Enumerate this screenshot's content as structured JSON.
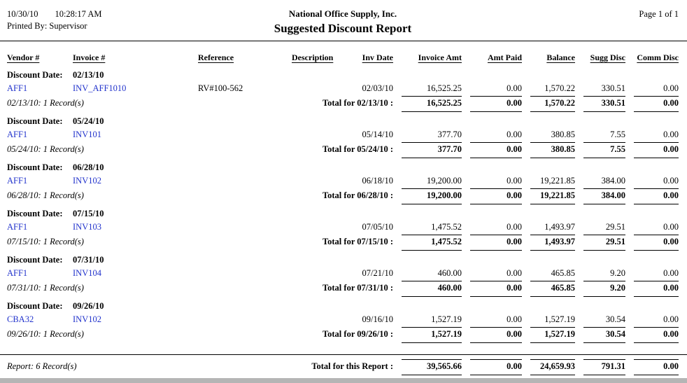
{
  "header": {
    "date": "10/30/10",
    "time": "10:28:17 AM",
    "printed_by": "Printed By: Supervisor",
    "company": "National Office Supply, Inc.",
    "title": "Suggested Discount Report",
    "page": "Page 1 of 1"
  },
  "labels": {
    "discount_date": "Discount Date:"
  },
  "colors": {
    "link_blue": "#2233cc",
    "text": "#000000",
    "rule": "#000000"
  },
  "columns": [
    "Vendor #",
    "Invoice #",
    "Reference",
    "Description",
    "Inv Date",
    "Invoice Amt",
    "Amt Paid",
    "Balance",
    "Sugg Disc",
    "Comm Disc"
  ],
  "groups": [
    {
      "discount_date": "02/13/10",
      "rows": [
        {
          "vendor": "AFF1",
          "invoice": "INV_AFF1010",
          "reference": "RV#100-562",
          "description": "",
          "inv_date": "02/03/10",
          "invoice_amt": "16,525.25",
          "amt_paid": "0.00",
          "balance": "1,570.22",
          "sugg_disc": "330.51",
          "comm_disc": "0.00"
        }
      ],
      "record_note": "02/13/10: 1 Record(s)",
      "total_label": "Total for 02/13/10 :",
      "totals": {
        "invoice_amt": "16,525.25",
        "amt_paid": "0.00",
        "balance": "1,570.22",
        "sugg_disc": "330.51",
        "comm_disc": "0.00"
      }
    },
    {
      "discount_date": "05/24/10",
      "rows": [
        {
          "vendor": "AFF1",
          "invoice": "INV101",
          "reference": "",
          "description": "",
          "inv_date": "05/14/10",
          "invoice_amt": "377.70",
          "amt_paid": "0.00",
          "balance": "380.85",
          "sugg_disc": "7.55",
          "comm_disc": "0.00"
        }
      ],
      "record_note": "05/24/10: 1 Record(s)",
      "total_label": "Total for 05/24/10 :",
      "totals": {
        "invoice_amt": "377.70",
        "amt_paid": "0.00",
        "balance": "380.85",
        "sugg_disc": "7.55",
        "comm_disc": "0.00"
      }
    },
    {
      "discount_date": "06/28/10",
      "rows": [
        {
          "vendor": "AFF1",
          "invoice": "INV102",
          "reference": "",
          "description": "",
          "inv_date": "06/18/10",
          "invoice_amt": "19,200.00",
          "amt_paid": "0.00",
          "balance": "19,221.85",
          "sugg_disc": "384.00",
          "comm_disc": "0.00"
        }
      ],
      "record_note": "06/28/10: 1 Record(s)",
      "total_label": "Total for 06/28/10 :",
      "totals": {
        "invoice_amt": "19,200.00",
        "amt_paid": "0.00",
        "balance": "19,221.85",
        "sugg_disc": "384.00",
        "comm_disc": "0.00"
      }
    },
    {
      "discount_date": "07/15/10",
      "rows": [
        {
          "vendor": "AFF1",
          "invoice": "INV103",
          "reference": "",
          "description": "",
          "inv_date": "07/05/10",
          "invoice_amt": "1,475.52",
          "amt_paid": "0.00",
          "balance": "1,493.97",
          "sugg_disc": "29.51",
          "comm_disc": "0.00"
        }
      ],
      "record_note": "07/15/10: 1 Record(s)",
      "total_label": "Total for 07/15/10 :",
      "totals": {
        "invoice_amt": "1,475.52",
        "amt_paid": "0.00",
        "balance": "1,493.97",
        "sugg_disc": "29.51",
        "comm_disc": "0.00"
      }
    },
    {
      "discount_date": "07/31/10",
      "rows": [
        {
          "vendor": "AFF1",
          "invoice": "INV104",
          "reference": "",
          "description": "",
          "inv_date": "07/21/10",
          "invoice_amt": "460.00",
          "amt_paid": "0.00",
          "balance": "465.85",
          "sugg_disc": "9.20",
          "comm_disc": "0.00"
        }
      ],
      "record_note": "07/31/10: 1 Record(s)",
      "total_label": "Total for 07/31/10 :",
      "totals": {
        "invoice_amt": "460.00",
        "amt_paid": "0.00",
        "balance": "465.85",
        "sugg_disc": "9.20",
        "comm_disc": "0.00"
      }
    },
    {
      "discount_date": "09/26/10",
      "rows": [
        {
          "vendor": "CBA32",
          "invoice": "INV102",
          "reference": "",
          "description": "",
          "inv_date": "09/16/10",
          "invoice_amt": "1,527.19",
          "amt_paid": "0.00",
          "balance": "1,527.19",
          "sugg_disc": "30.54",
          "comm_disc": "0.00"
        }
      ],
      "record_note": "09/26/10: 1 Record(s)",
      "total_label": "Total for 09/26/10 :",
      "totals": {
        "invoice_amt": "1,527.19",
        "amt_paid": "0.00",
        "balance": "1,527.19",
        "sugg_disc": "30.54",
        "comm_disc": "0.00"
      }
    }
  ],
  "footer": {
    "record_note": "Report: 6 Record(s)",
    "total_label": "Total for this Report :",
    "totals": {
      "invoice_amt": "39,565.66",
      "amt_paid": "0.00",
      "balance": "24,659.93",
      "sugg_disc": "791.31",
      "comm_disc": "0.00"
    }
  }
}
